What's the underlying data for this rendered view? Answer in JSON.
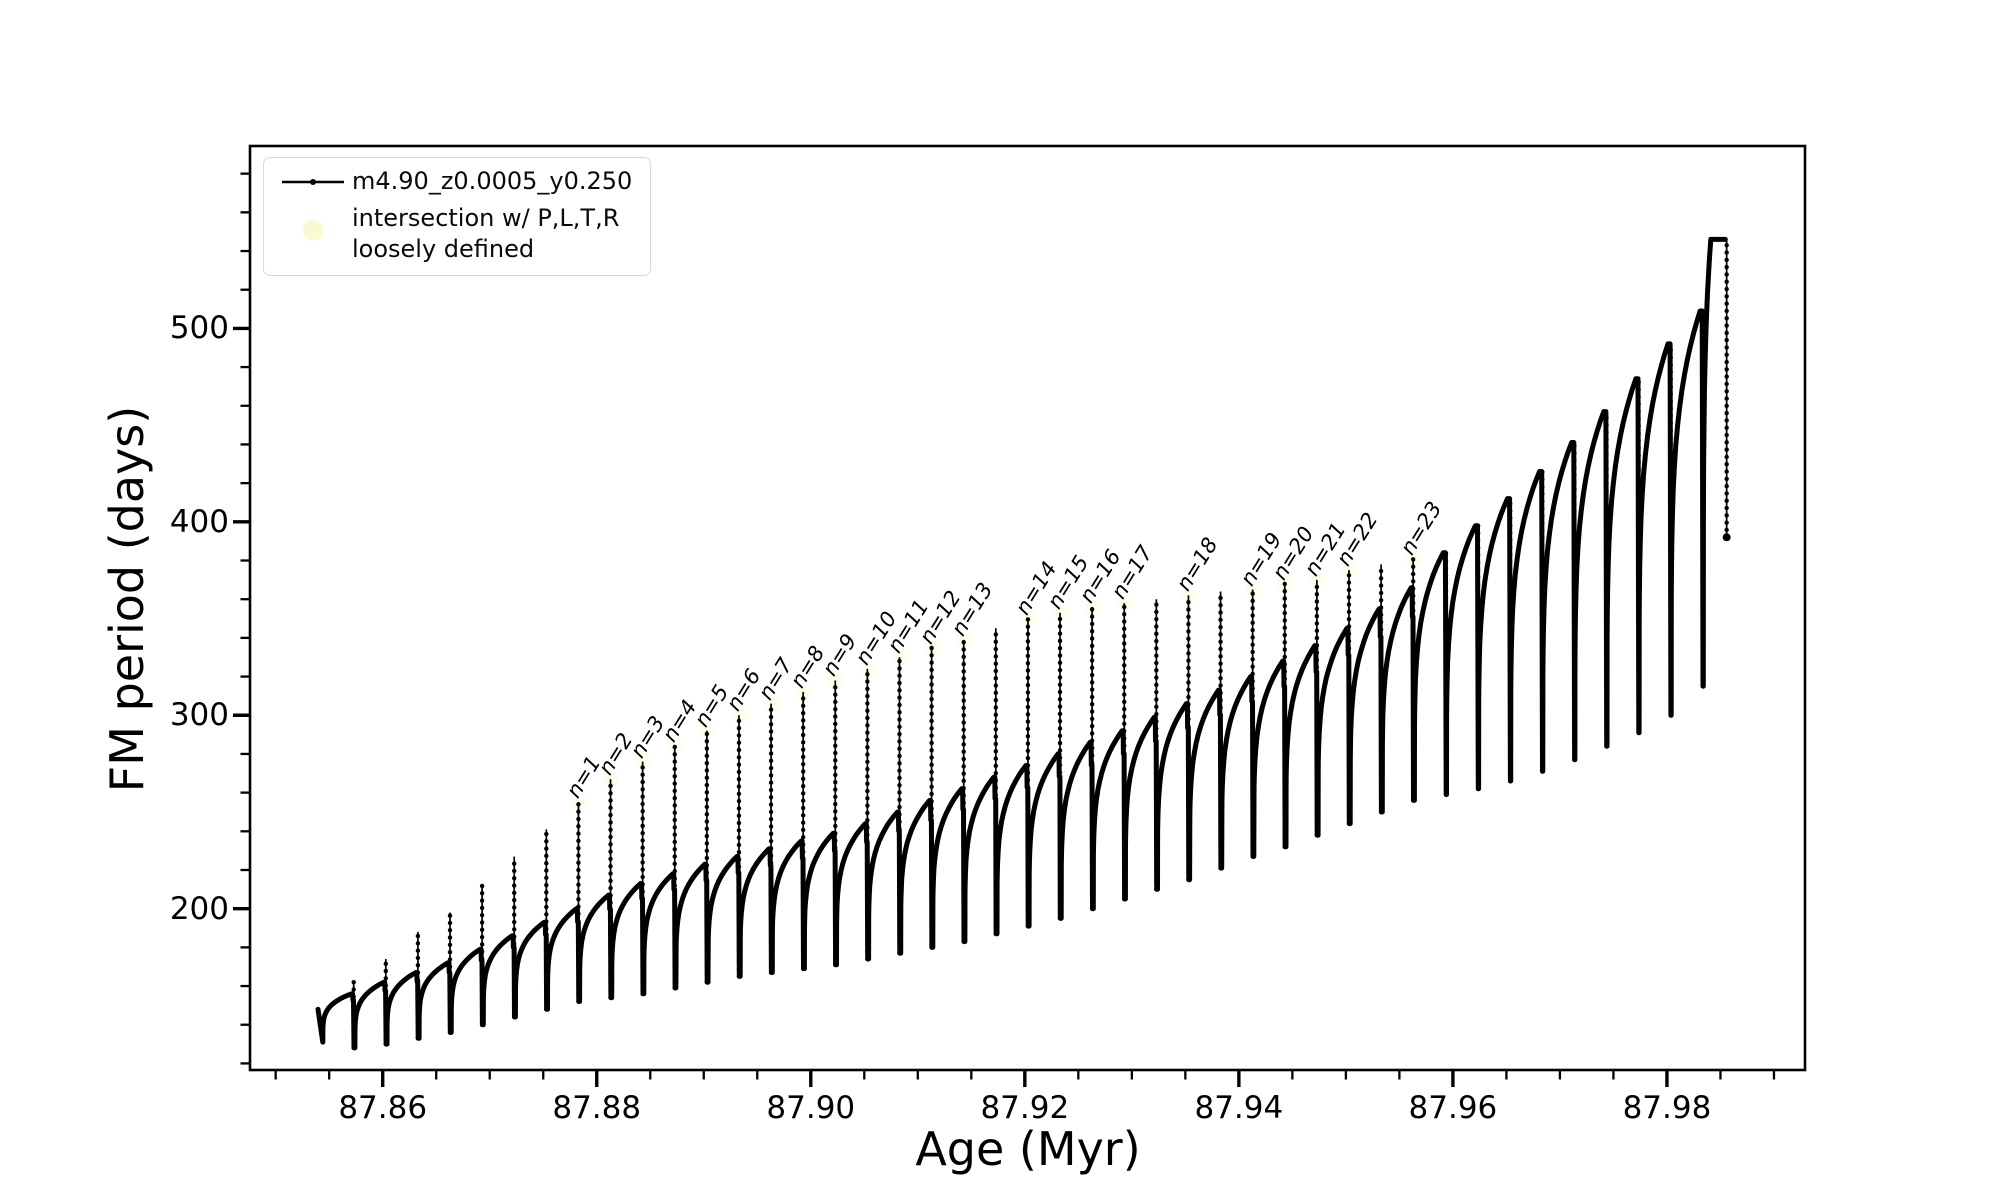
{
  "figure": {
    "background": "#ffffff"
  },
  "axes": {
    "xlabel": "Age (Myr)",
    "ylabel": "FM period (days)",
    "xlim": [
      87.8476,
      87.9929
    ],
    "ylim": [
      116.6,
      594.3
    ],
    "x_major_ticks": [
      87.86,
      87.88,
      87.9,
      87.92,
      87.94,
      87.96,
      87.98
    ],
    "x_major_labels": [
      "87.86",
      "87.88",
      "87.90",
      "87.92",
      "87.94",
      "87.96",
      "87.98"
    ],
    "x_minor_step": 0.005,
    "y_major_ticks": [
      200,
      300,
      400,
      500
    ],
    "y_major_labels": [
      "200",
      "300",
      "400",
      "500"
    ],
    "y_minor_step": 20,
    "spine_color": "#000000"
  },
  "legend": {
    "series_label": "m4.90_z0.0005_y0.250",
    "intersection_label_line1": "intersection w/ P,L,T,R",
    "intersection_label_line2": "loosely defined",
    "marker_color": "#fafad2",
    "line_color": "#000000"
  },
  "chart_data": {
    "type": "line",
    "title": "",
    "xlabel": "Age (Myr)",
    "ylabel": "FM period (days)",
    "x_unit": "Myr",
    "y_unit": "days",
    "series": [
      {
        "name": "m4.90_z0.0005_y0.250",
        "color": "#000000"
      }
    ],
    "start_point": {
      "age": 87.85395,
      "period": 148
    },
    "pulses": [
      {
        "age": 87.8544,
        "dip": 131,
        "top": null,
        "tip": 131
      },
      {
        "age": 87.8574,
        "dip": 128,
        "top": 156,
        "tip": 162
      },
      {
        "age": 87.8604,
        "dip": 130,
        "top": 162,
        "tip": 174
      },
      {
        "age": 87.8634,
        "dip": 133,
        "top": 167,
        "tip": 188
      },
      {
        "age": 87.8664,
        "dip": 136,
        "top": 172,
        "tip": 198
      },
      {
        "age": 87.8694,
        "dip": 140,
        "top": 179,
        "tip": 212
      },
      {
        "age": 87.8724,
        "dip": 144,
        "top": 186,
        "tip": 227
      },
      {
        "age": 87.8754,
        "dip": 148,
        "top": 193,
        "tip": 241
      },
      {
        "age": 87.8784,
        "dip": 152,
        "top": 200,
        "tip": 255
      },
      {
        "age": 87.8814,
        "dip": 154,
        "top": 207,
        "tip": 267
      },
      {
        "age": 87.8844,
        "dip": 156,
        "top": 213,
        "tip": 276
      },
      {
        "age": 87.8874,
        "dip": 159,
        "top": 218,
        "tip": 284
      },
      {
        "age": 87.8904,
        "dip": 162,
        "top": 223,
        "tip": 292
      },
      {
        "age": 87.8934,
        "dip": 165,
        "top": 227,
        "tip": 300
      },
      {
        "age": 87.8964,
        "dip": 167,
        "top": 231,
        "tip": 306
      },
      {
        "age": 87.8994,
        "dip": 169,
        "top": 235,
        "tip": 312
      },
      {
        "age": 87.9024,
        "dip": 171,
        "top": 239,
        "tip": 318
      },
      {
        "age": 87.9054,
        "dip": 174,
        "top": 244,
        "tip": 324
      },
      {
        "age": 87.9084,
        "dip": 177,
        "top": 250,
        "tip": 330
      },
      {
        "age": 87.9114,
        "dip": 180,
        "top": 256,
        "tip": 335
      },
      {
        "age": 87.9144,
        "dip": 183,
        "top": 262,
        "tip": 339
      },
      {
        "age": 87.9174,
        "dip": 187,
        "top": 268,
        "tip": 345
      },
      {
        "age": 87.9204,
        "dip": 191,
        "top": 274,
        "tip": 350
      },
      {
        "age": 87.9234,
        "dip": 195,
        "top": 280,
        "tip": 353
      },
      {
        "age": 87.9264,
        "dip": 200,
        "top": 286,
        "tip": 356
      },
      {
        "age": 87.9294,
        "dip": 205,
        "top": 292,
        "tip": 358
      },
      {
        "age": 87.9324,
        "dip": 210,
        "top": 299,
        "tip": 360
      },
      {
        "age": 87.9354,
        "dip": 215,
        "top": 306,
        "tip": 362
      },
      {
        "age": 87.9384,
        "dip": 221,
        "top": 313,
        "tip": 364
      },
      {
        "age": 87.9414,
        "dip": 227,
        "top": 320,
        "tip": 365
      },
      {
        "age": 87.9444,
        "dip": 232,
        "top": 328,
        "tip": 368
      },
      {
        "age": 87.9474,
        "dip": 238,
        "top": 336,
        "tip": 370
      },
      {
        "age": 87.9504,
        "dip": 244,
        "top": 345,
        "tip": 375
      },
      {
        "age": 87.9534,
        "dip": 250,
        "top": 355,
        "tip": 378
      },
      {
        "age": 87.9564,
        "dip": 256,
        "top": 366,
        "tip": 381
      },
      {
        "age": 87.9594,
        "dip": 259,
        "top": 384,
        "tip": 384
      },
      {
        "age": 87.9624,
        "dip": 262,
        "top": 398,
        "tip": 398
      },
      {
        "age": 87.9654,
        "dip": 266,
        "top": 412,
        "tip": 412
      },
      {
        "age": 87.9684,
        "dip": 271,
        "top": 426,
        "tip": 426
      },
      {
        "age": 87.9714,
        "dip": 277,
        "top": 441,
        "tip": 441
      },
      {
        "age": 87.9744,
        "dip": 284,
        "top": 457,
        "tip": 457
      },
      {
        "age": 87.9774,
        "dip": 291,
        "top": 474,
        "tip": 474
      },
      {
        "age": 87.9804,
        "dip": 300,
        "top": 492,
        "tip": 492
      },
      {
        "age": 87.9834,
        "dip": 315,
        "top": 509,
        "tip": 509
      }
    ],
    "final_pulse": {
      "top_start_age": 87.9841,
      "top_end_age": 87.98545,
      "top": 546,
      "drop_age": 87.98558,
      "drop_end_period": 392
    },
    "annotations": [
      {
        "label": "n=1",
        "pulse_index": 8
      },
      {
        "label": "n=2",
        "pulse_index": 9
      },
      {
        "label": "n=3",
        "pulse_index": 10
      },
      {
        "label": "n=4",
        "pulse_index": 11
      },
      {
        "label": "n=5",
        "pulse_index": 12
      },
      {
        "label": "n=6",
        "pulse_index": 13
      },
      {
        "label": "n=7",
        "pulse_index": 14
      },
      {
        "label": "n=8",
        "pulse_index": 15
      },
      {
        "label": "n=9",
        "pulse_index": 16
      },
      {
        "label": "n=10",
        "pulse_index": 17
      },
      {
        "label": "n=11",
        "pulse_index": 18
      },
      {
        "label": "n=12",
        "pulse_index": 19
      },
      {
        "label": "n=13",
        "pulse_index": 20
      },
      {
        "label": "n=14",
        "pulse_index": 22
      },
      {
        "label": "n=15",
        "pulse_index": 23
      },
      {
        "label": "n=16",
        "pulse_index": 24
      },
      {
        "label": "n=17",
        "pulse_index": 25
      },
      {
        "label": "n=18",
        "pulse_index": 27
      },
      {
        "label": "n=19",
        "pulse_index": 29
      },
      {
        "label": "n=20",
        "pulse_index": 30
      },
      {
        "label": "n=21",
        "pulse_index": 31
      },
      {
        "label": "n=22",
        "pulse_index": 32
      },
      {
        "label": "n=23",
        "pulse_index": 34
      }
    ]
  }
}
